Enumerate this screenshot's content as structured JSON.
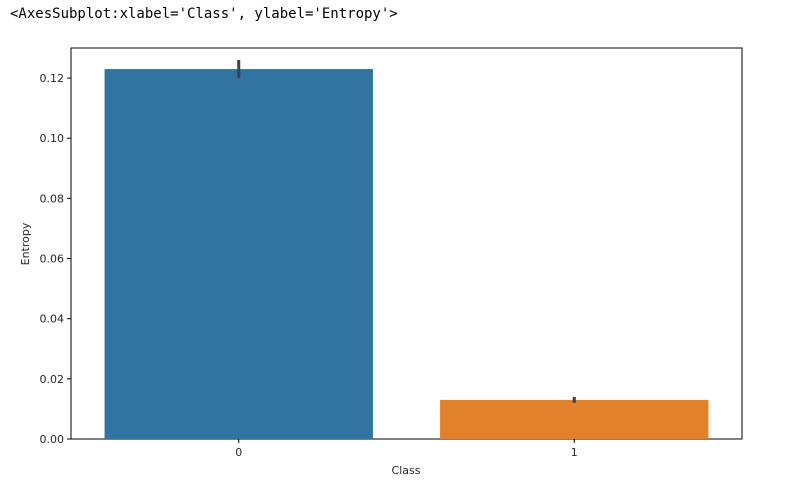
{
  "output_text": "<AxesSubplot:xlabel='Class', ylabel='Entropy'>",
  "chart_data": {
    "type": "bar",
    "categories": [
      "0",
      "1"
    ],
    "values": [
      0.123,
      0.013
    ],
    "error": [
      [
        0.12,
        0.126
      ],
      [
        0.012,
        0.014
      ]
    ],
    "xlabel": "Class",
    "ylabel": "Entropy",
    "ylim": [
      0,
      0.13
    ],
    "yticks": [
      0,
      0.02,
      0.04,
      0.06,
      0.08,
      0.1,
      0.12
    ],
    "ytick_labels": [
      "0.00",
      "0.02",
      "0.04",
      "0.06",
      "0.08",
      "0.10",
      "0.12"
    ],
    "colors": [
      "#3274a1",
      "#e1812c"
    ],
    "error_color": "#3f3f3f",
    "grid": false
  }
}
